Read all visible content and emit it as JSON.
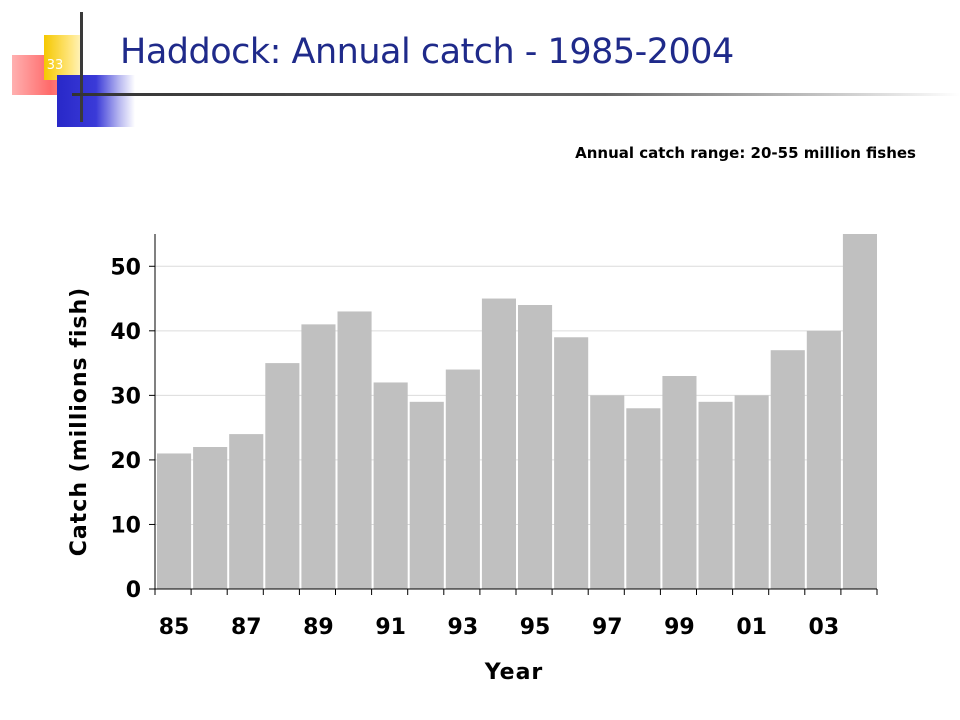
{
  "slide": {
    "number": "33",
    "title": "Haddock: Annual catch - 1985-2004",
    "subtitle": "Annual catch range: 20-55 million fishes"
  },
  "colors": {
    "title": "#1f2a8a",
    "bar": "#c0c0c0",
    "grid": "#dcdcdc",
    "axis": "#000000"
  },
  "chart_data": {
    "type": "bar",
    "xlabel": "Year",
    "ylabel": "Catch (millions fish)",
    "ylim": [
      0,
      55
    ],
    "yticks": [
      0,
      10,
      20,
      30,
      40,
      50
    ],
    "grid": true,
    "categories": [
      "85",
      "86",
      "87",
      "88",
      "89",
      "90",
      "91",
      "92",
      "93",
      "94",
      "95",
      "96",
      "97",
      "98",
      "99",
      "00",
      "01",
      "02",
      "03",
      "04"
    ],
    "xtick_labels": [
      "85",
      "87",
      "89",
      "91",
      "93",
      "95",
      "97",
      "99",
      "01",
      "03"
    ],
    "values": [
      21,
      22,
      24,
      35,
      41,
      43,
      32,
      29,
      34,
      45,
      44,
      39,
      30,
      28,
      33,
      29,
      30,
      37,
      40,
      55
    ]
  }
}
